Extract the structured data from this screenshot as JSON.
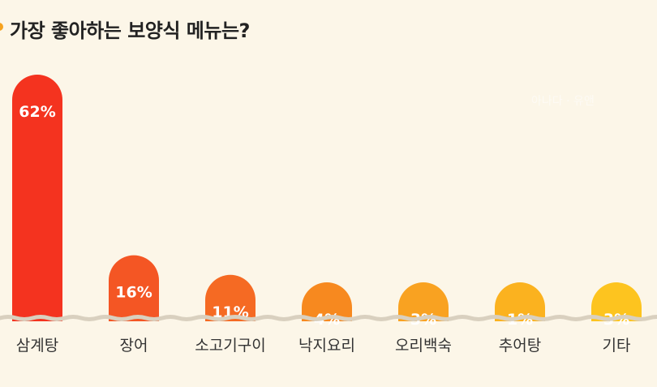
{
  "title": "가장 좋아하는 보양식 메뉴는?",
  "watermark": "아나다 · 유앤",
  "colors": {
    "background": "#fcf6e8",
    "baseline": "#d9d0bf",
    "label": "#333333",
    "value_label": "#ffffff"
  },
  "chart_data": {
    "type": "bar",
    "title": "가장 좋아하는 보양식 메뉴는?",
    "categories": [
      "삼계탕",
      "장어",
      "소고기구이",
      "낙지요리",
      "오리백숙",
      "추어탕",
      "기타"
    ],
    "values": [
      62,
      16,
      11,
      4,
      3,
      1,
      3
    ],
    "value_labels": [
      "62%",
      "16%",
      "11%",
      "4%",
      "3%",
      "1%",
      "3%"
    ],
    "bar_colors": [
      "#f4331f",
      "#f45624",
      "#f56a23",
      "#f7891f",
      "#f9a221",
      "#fbb21f",
      "#fdc41f"
    ],
    "xlabel": "",
    "ylabel": "",
    "grid": false,
    "legend": "none"
  }
}
